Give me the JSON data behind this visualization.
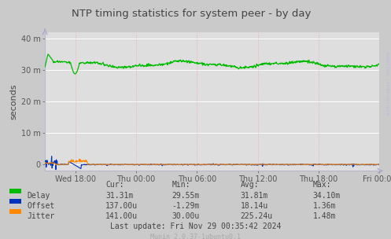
{
  "title": "NTP timing statistics for system peer - by day",
  "ylabel": "seconds",
  "bg_color": "#CACACA",
  "plot_bg_color": "#DEDEDE",
  "delay_color": "#00BB00",
  "offset_color": "#0033BB",
  "jitter_color": "#FF8800",
  "grid_h_color": "#FFFFFF",
  "grid_v_color": "#FF9999",
  "spine_color": "#AAAACC",
  "tick_color": "#555555",
  "text_color": "#444444",
  "rrdtool_color": "#BBBBDD",
  "munin_color": "#AAAAAA",
  "ylim_low": -0.002,
  "ylim_high": 0.042,
  "ytick_vals": [
    0.0,
    0.01,
    0.02,
    0.03,
    0.04
  ],
  "ytick_labels": [
    "0",
    "10 m",
    "20 m",
    "30 m",
    "40 m"
  ],
  "xtick_labels": [
    "Wed 18:00",
    "Thu 00:00",
    "Thu 06:00",
    "Thu 12:00",
    "Thu 18:00",
    "Fri 00:00"
  ],
  "legend_labels": [
    "Delay",
    "Offset",
    "Jitter"
  ],
  "table_headers": [
    "Cur:",
    "Min:",
    "Avg:",
    "Max:"
  ],
  "delay_stats": [
    "31.31m",
    "29.55m",
    "31.81m",
    "34.10m"
  ],
  "offset_stats": [
    "137.00u",
    "-1.29m",
    "18.14u",
    "1.36m"
  ],
  "jitter_stats": [
    "141.00u",
    "30.00u",
    "225.24u",
    "1.48m"
  ],
  "last_update": "Last update: Fri Nov 29 00:35:42 2024",
  "munin_version": "Munin 2.0.37-1ubuntu0.1",
  "rrdtool_label": "RRDTOOL / TOBI OETIKER",
  "total_hours": 33,
  "tick_hours": [
    3,
    9,
    15,
    21,
    27,
    33
  ]
}
